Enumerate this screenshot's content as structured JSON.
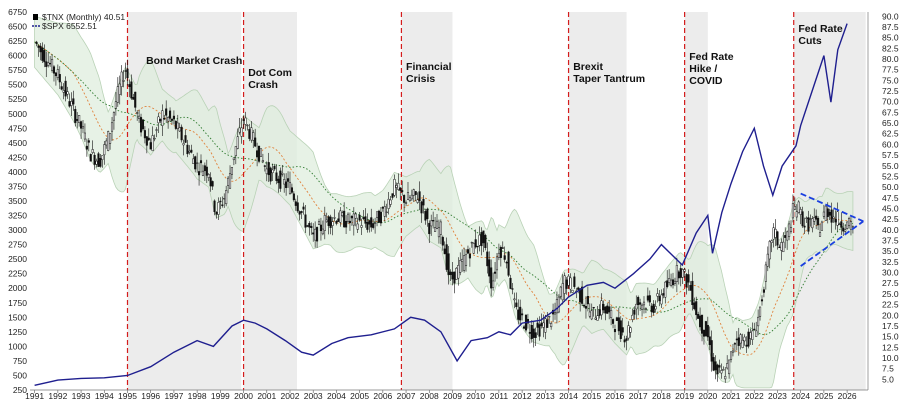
{
  "chart_data": {
    "type": "line",
    "legend": {
      "placement": "top-left",
      "entries": [
        {
          "label": "$TNX (Monthly) 40.51",
          "color": "#000000",
          "style": "candlestick"
        },
        {
          "label": "$SPX 6552.51",
          "color": "#1f1f8f",
          "style": "line"
        }
      ]
    },
    "x_tick_labels": [
      "1991",
      "1992",
      "1993",
      "1994",
      "1995",
      "1996",
      "1997",
      "1998",
      "1999",
      "2000",
      "2001",
      "2002",
      "2003",
      "2004",
      "2005",
      "2006",
      "2007",
      "2008",
      "2009",
      "2010",
      "2011",
      "2012",
      "2013",
      "2014",
      "2015",
      "2016",
      "2017",
      "2018",
      "2019",
      "2020",
      "2021",
      "2022",
      "2023",
      "2024",
      "2025",
      "2026"
    ],
    "xlim": [
      1990.8,
      2026.9
    ],
    "y_left": {
      "label_position": "left",
      "ylim": [
        250,
        6750
      ],
      "ticks": [
        6750,
        6500,
        6250,
        6000,
        5750,
        5500,
        5250,
        5000,
        4750,
        4500,
        4250,
        4000,
        3750,
        3500,
        3250,
        3000,
        2750,
        2500,
        2250,
        2000,
        1750,
        1500,
        1250,
        1000,
        750,
        500,
        250
      ]
    },
    "y_right": {
      "label_position": "right",
      "ylim": [
        2.5,
        91
      ],
      "ticks": [
        90.0,
        87.5,
        85.0,
        82.5,
        80.0,
        77.5,
        75.0,
        72.5,
        70.0,
        67.5,
        65.0,
        62.5,
        60.0,
        57.5,
        55.0,
        52.5,
        50.0,
        47.5,
        45.0,
        42.5,
        40.0,
        37.5,
        35.0,
        32.5,
        30.0,
        27.5,
        25.0,
        22.5,
        20.0,
        17.5,
        15.0,
        12.5,
        10.0,
        7.5,
        5.0
      ]
    },
    "grid": false,
    "shaded_periods": [
      [
        1995.0,
        1999.9
      ],
      [
        2000.0,
        2002.3
      ],
      [
        2006.8,
        2009.0
      ],
      [
        2014.0,
        2016.5
      ],
      [
        2019.0,
        2020.0
      ],
      [
        2023.7,
        2026.8
      ]
    ],
    "event_lines": [
      1995.0,
      2000.0,
      2006.8,
      2014.0,
      2019.0,
      2023.7
    ],
    "annotations": [
      {
        "text": "Bond Market Crash",
        "x": 1995.8
      },
      {
        "text": "Dot Com",
        "x": 2000.2
      },
      {
        "text": "Crash",
        "x": 2000.2
      },
      {
        "text": "Financial",
        "x": 2007.0
      },
      {
        "text": "Crisis",
        "x": 2007.0
      },
      {
        "text": "Brexit",
        "x": 2014.2
      },
      {
        "text": "Taper Tantrum",
        "x": 2014.2
      },
      {
        "text": "Fed Rate",
        "x": 2019.2
      },
      {
        "text": "Hike /",
        "x": 2019.2
      },
      {
        "text": "COVID",
        "x": 2019.2
      },
      {
        "text": "Fed Rate",
        "x": 2023.9
      },
      {
        "text": "Cuts",
        "x": 2023.9
      }
    ],
    "series": [
      {
        "name": "$TNX (Monthly) 40.51",
        "axis": "right",
        "x": [
          1991.0,
          1991.5,
          1992.0,
          1992.5,
          1993.0,
          1993.4,
          1993.8,
          1994.2,
          1994.5,
          1994.9,
          1995.5,
          1996.0,
          1996.5,
          1997.0,
          1997.5,
          1998.0,
          1998.5,
          1998.8,
          1999.2,
          1999.6,
          2000.0,
          2000.5,
          2001.0,
          2001.5,
          2002.0,
          2002.5,
          2003.0,
          2003.5,
          2004.0,
          2004.5,
          2005.0,
          2005.5,
          2006.0,
          2006.5,
          2007.0,
          2007.5,
          2008.0,
          2008.5,
          2008.9,
          2009.3,
          2009.7,
          2010.0,
          2010.3,
          2010.7,
          2011.0,
          2011.3,
          2011.7,
          2012.0,
          2012.5,
          2013.0,
          2013.4,
          2013.8,
          2014.2,
          2014.6,
          2015.0,
          2015.5,
          2016.0,
          2016.5,
          2016.9,
          2017.3,
          2017.7,
          2018.0,
          2018.4,
          2018.8,
          2019.2,
          2019.6,
          2020.0,
          2020.3,
          2020.6,
          2020.9,
          2021.2,
          2021.5,
          2021.9,
          2022.2,
          2022.5,
          2022.8,
          2023.1,
          2023.4,
          2023.7,
          2023.9,
          2024.2,
          2024.5,
          2024.8,
          2025.1,
          2025.4,
          2025.7,
          2026.0,
          2026.3
        ],
        "values": [
          84,
          80,
          76,
          70,
          64,
          58,
          56,
          62,
          70,
          78,
          65,
          60,
          67,
          65,
          60,
          55,
          54,
          44,
          48,
          58,
          66,
          60,
          54,
          52,
          50,
          44,
          38,
          42,
          43,
          42,
          42,
          41,
          44,
          50,
          47,
          48,
          41,
          40,
          28,
          31,
          35,
          37,
          38,
          27,
          36,
          34,
          21,
          19,
          16,
          18,
          20,
          28,
          27,
          24,
          20,
          22,
          18,
          15,
          23,
          23,
          22,
          25,
          28,
          31,
          27,
          19,
          15,
          7,
          6,
          8,
          15,
          14,
          15,
          20,
          30,
          40,
          36,
          38,
          45,
          45,
          41,
          42,
          40,
          45,
          43,
          42,
          41,
          40.5
        ]
      },
      {
        "name": "$SPX 6552.51",
        "axis": "left",
        "x": [
          1991.0,
          1992.0,
          1993.0,
          1994.0,
          1995.0,
          1996.0,
          1997.0,
          1998.0,
          1998.7,
          1999.5,
          2000.0,
          2000.5,
          2001.0,
          2001.8,
          2002.5,
          2003.0,
          2003.8,
          2004.5,
          2005.5,
          2006.5,
          2007.2,
          2007.8,
          2008.5,
          2009.2,
          2009.8,
          2010.5,
          2011.0,
          2011.5,
          2012.0,
          2012.8,
          2013.5,
          2014.0,
          2014.8,
          2015.5,
          2016.0,
          2016.8,
          2017.5,
          2018.0,
          2018.9,
          2019.5,
          2020.0,
          2020.2,
          2020.6,
          2021.0,
          2021.5,
          2022.0,
          2022.4,
          2022.8,
          2023.2,
          2023.8,
          2024.0,
          2024.5,
          2025.0,
          2025.3,
          2025.6,
          2026.0
        ],
        "values": [
          330,
          420,
          450,
          460,
          500,
          650,
          900,
          1100,
          1000,
          1350,
          1450,
          1400,
          1300,
          1100,
          900,
          850,
          1050,
          1150,
          1200,
          1300,
          1500,
          1450,
          1250,
          750,
          1100,
          1150,
          1250,
          1200,
          1400,
          1450,
          1650,
          1850,
          2050,
          2100,
          2000,
          2250,
          2500,
          2750,
          2400,
          2950,
          3250,
          2600,
          3300,
          3800,
          4350,
          4750,
          4100,
          3600,
          4100,
          4450,
          4800,
          5400,
          6000,
          5200,
          6100,
          6550
        ]
      }
    ]
  }
}
